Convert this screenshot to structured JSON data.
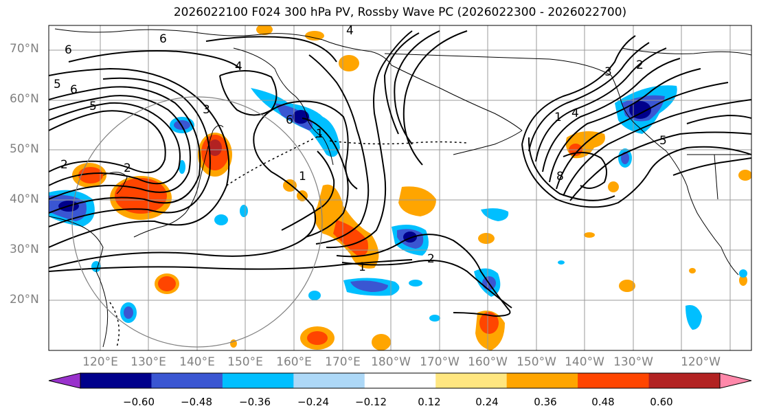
{
  "title": "2026022100 F024 300 hPa PV, Rossby Wave PC (2026022300 - 2026022700)",
  "latitude_labels": [
    "70°N",
    "60°N",
    "50°N",
    "40°N",
    "30°N",
    "20°N"
  ],
  "longitude_labels": [
    "120°E",
    "130°E",
    "140°E",
    "150°E",
    "160°E",
    "170°E",
    "180°W",
    "170°W",
    "160°W",
    "150°W",
    "140°W",
    "130°W",
    "120°W"
  ],
  "colorbar": {
    "tick_labels": [
      "−0.60",
      "−0.48",
      "−0.36",
      "−0.24",
      "−0.12",
      "0.12",
      "0.24",
      "0.36",
      "0.48",
      "0.60"
    ],
    "colors": [
      "#9932cc",
      "#00008b",
      "#3a56d2",
      "#00bfff",
      "#add8f7",
      "#ffffff",
      "#ffe680",
      "#ffa500",
      "#ff4500",
      "#b22222",
      "#ff88aa"
    ]
  },
  "contour_labels": [
    "6",
    "6",
    "6",
    "5",
    "5",
    "4",
    "4",
    "3",
    "2",
    "1",
    "1",
    "2",
    "3",
    "2",
    "1",
    "8",
    "6",
    "2",
    "1",
    "4",
    "5"
  ]
}
